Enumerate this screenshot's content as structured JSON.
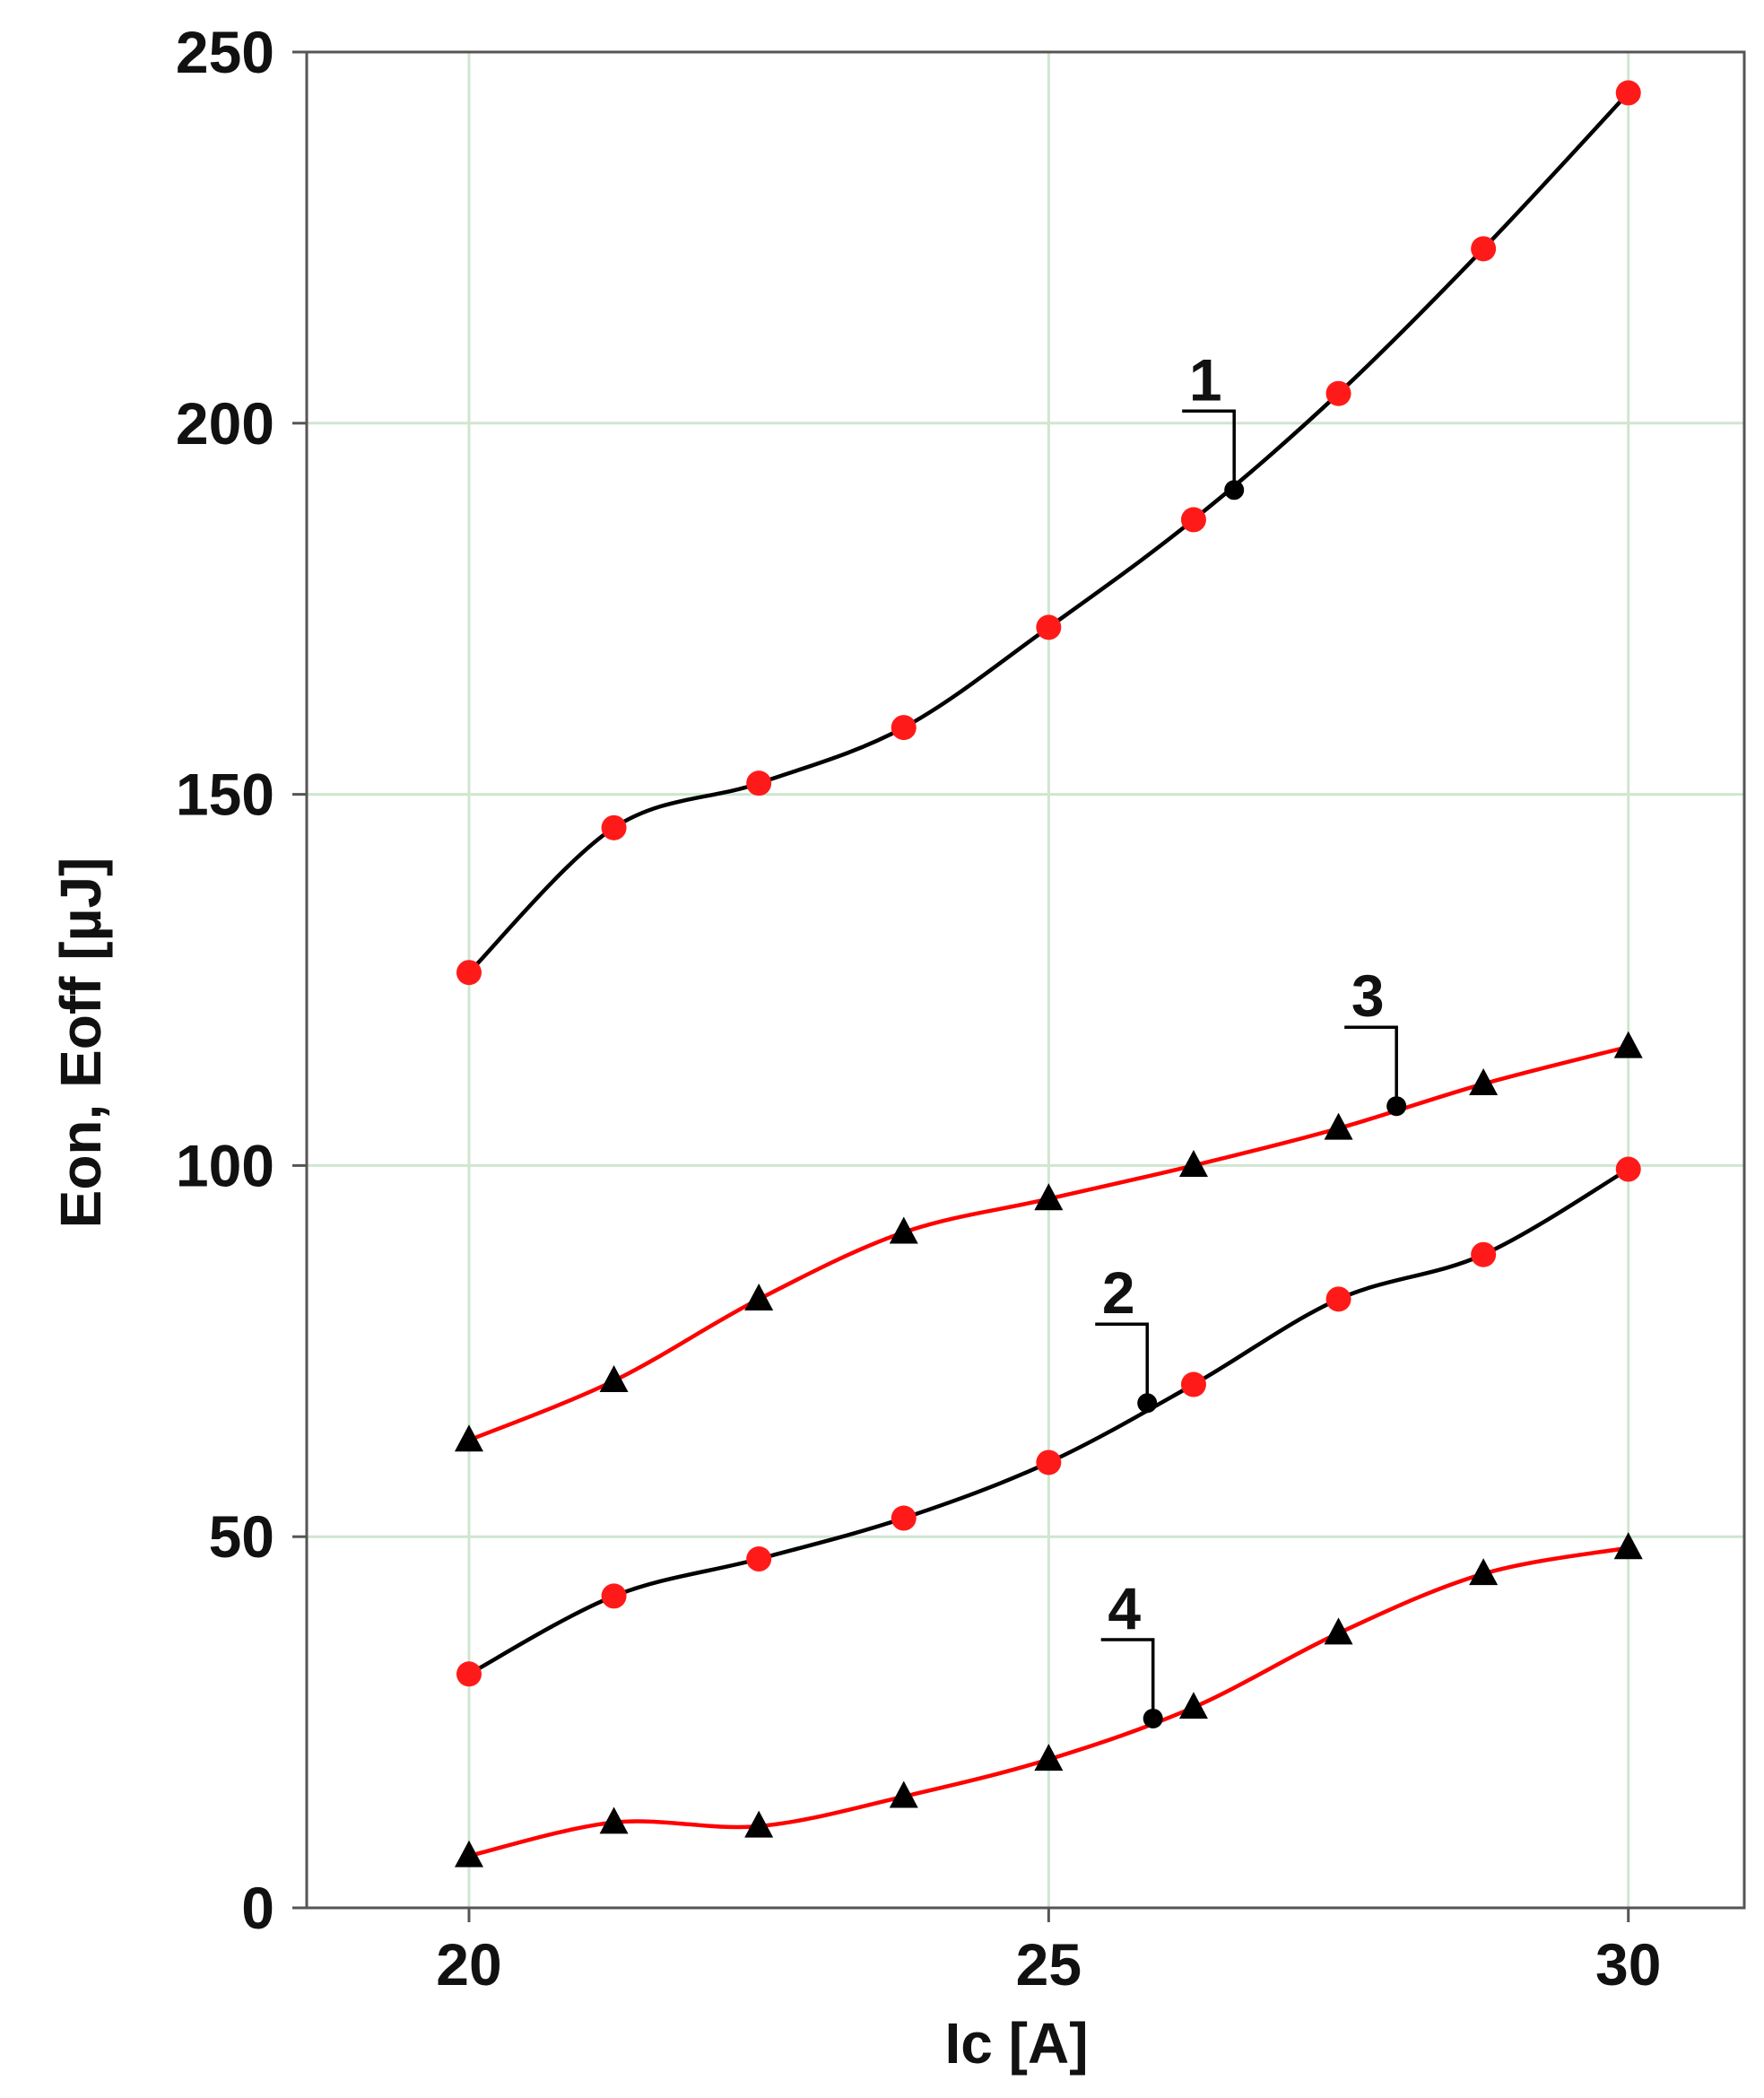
{
  "chart_data": {
    "type": "line",
    "title": "",
    "xlabel": "Ic [A]",
    "ylabel": "Eon, Eoff [µJ]",
    "xlim": [
      18.6,
      31.0
    ],
    "ylim": [
      0,
      250
    ],
    "x_ticks": [
      20,
      25,
      30
    ],
    "y_ticks": [
      0,
      50,
      100,
      150,
      200,
      250
    ],
    "grid": true,
    "series": [
      {
        "name": "1",
        "line_color": "#000000",
        "marker": "circle",
        "marker_color": "#ff1a1a",
        "x": [
          20,
          21.25,
          22.5,
          23.75,
          25,
          26.25,
          27.5,
          28.75,
          30
        ],
        "y": [
          126,
          145.5,
          151.5,
          159,
          172.5,
          187,
          204,
          223.5,
          244.5
        ],
        "label_anchor": [
          26.6,
          191
        ]
      },
      {
        "name": "2",
        "line_color": "#000000",
        "marker": "circle",
        "marker_color": "#ff1a1a",
        "x": [
          20,
          21.25,
          22.5,
          23.75,
          25,
          26.25,
          27.5,
          28.75,
          30
        ],
        "y": [
          31.5,
          42,
          47,
          52.5,
          60,
          70.5,
          82,
          88,
          99.5
        ],
        "label_anchor": [
          25.85,
          68
        ]
      },
      {
        "name": "3",
        "line_color": "#ff0000",
        "marker": "triangle",
        "marker_color": "#000000",
        "x": [
          20,
          21.25,
          22.5,
          23.75,
          25,
          26.25,
          27.5,
          28.75,
          30
        ],
        "y": [
          63,
          71,
          82,
          91,
          95.5,
          100,
          105,
          111,
          116
        ],
        "label_anchor": [
          28.0,
          108
        ]
      },
      {
        "name": "4",
        "line_color": "#ff0000",
        "marker": "triangle",
        "marker_color": "#000000",
        "x": [
          20,
          21.25,
          22.5,
          23.75,
          25,
          26.25,
          27.5,
          28.75,
          30
        ],
        "y": [
          7,
          11.5,
          11,
          15,
          20,
          27,
          37,
          45,
          48.5
        ],
        "label_anchor": [
          25.9,
          25.5
        ]
      }
    ]
  }
}
